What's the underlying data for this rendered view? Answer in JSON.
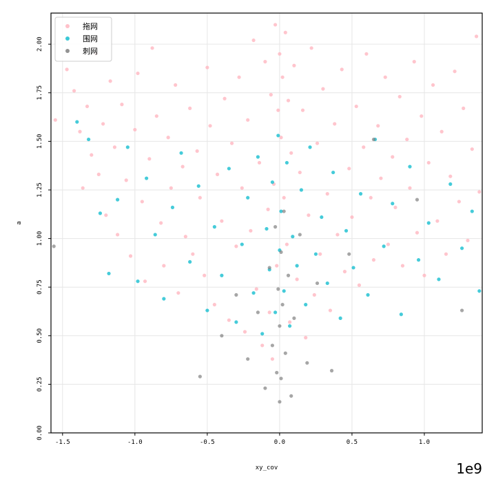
{
  "chart_data": {
    "type": "scatter",
    "title": "",
    "xlabel": "xy_cov",
    "ylabel": "a",
    "x_offset_label": "1e9",
    "xlim": [
      -1.58,
      1.4
    ],
    "ylim": [
      0.0,
      2.16
    ],
    "xticks": [
      -1.5,
      -1.0,
      -0.5,
      0.0,
      0.5,
      1.0
    ],
    "xtick_labels": [
      "-1.5",
      "-1.0",
      "-0.5",
      "0.0",
      "0.5",
      "1.0"
    ],
    "yticks": [
      0.0,
      0.25,
      0.5,
      0.75,
      1.0,
      1.25,
      1.5,
      1.75,
      2.0
    ],
    "ytick_labels": [
      "0.00",
      "0.25",
      "0.50",
      "0.75",
      "1.00",
      "1.25",
      "1.50",
      "1.75",
      "2.00"
    ],
    "grid": true,
    "legend_position": "top-left",
    "series": [
      {
        "name": "拖网",
        "color": "#ffb6c1",
        "points": [
          [
            -1.55,
            1.61
          ],
          [
            -1.47,
            1.87
          ],
          [
            -1.42,
            1.76
          ],
          [
            -1.38,
            1.55
          ],
          [
            -1.36,
            1.26
          ],
          [
            -1.33,
            1.68
          ],
          [
            -1.3,
            1.43
          ],
          [
            -1.27,
            1.95
          ],
          [
            -1.25,
            1.33
          ],
          [
            -1.22,
            1.59
          ],
          [
            -1.2,
            1.12
          ],
          [
            -1.17,
            1.81
          ],
          [
            -1.14,
            1.47
          ],
          [
            -1.12,
            1.02
          ],
          [
            -1.09,
            1.69
          ],
          [
            -1.06,
            1.3
          ],
          [
            -1.03,
            0.91
          ],
          [
            -1.0,
            1.56
          ],
          [
            -0.98,
            1.85
          ],
          [
            -0.95,
            1.19
          ],
          [
            -0.93,
            0.78
          ],
          [
            -0.9,
            1.41
          ],
          [
            -0.88,
            1.98
          ],
          [
            -0.85,
            1.63
          ],
          [
            -0.82,
            1.08
          ],
          [
            -0.8,
            0.86
          ],
          [
            -0.77,
            1.52
          ],
          [
            -0.75,
            1.26
          ],
          [
            -0.72,
            1.79
          ],
          [
            -0.7,
            0.72
          ],
          [
            -0.67,
            1.37
          ],
          [
            -0.65,
            1.01
          ],
          [
            -0.62,
            1.67
          ],
          [
            -0.6,
            0.92
          ],
          [
            -0.57,
            1.45
          ],
          [
            -0.55,
            1.21
          ],
          [
            -0.52,
            0.81
          ],
          [
            -0.5,
            1.88
          ],
          [
            -0.48,
            1.58
          ],
          [
            -0.45,
            0.66
          ],
          [
            -0.43,
            1.33
          ],
          [
            -0.4,
            1.09
          ],
          [
            -0.38,
            1.72
          ],
          [
            -0.35,
            0.58
          ],
          [
            -0.33,
            1.49
          ],
          [
            -0.3,
            0.96
          ],
          [
            -0.28,
            1.83
          ],
          [
            -0.26,
            1.26
          ],
          [
            -0.24,
            0.52
          ],
          [
            -0.22,
            1.61
          ],
          [
            -0.2,
            1.04
          ],
          [
            -0.18,
            2.02
          ],
          [
            -0.16,
            0.74
          ],
          [
            -0.14,
            1.39
          ],
          [
            -0.12,
            0.45
          ],
          [
            -0.1,
            1.91
          ],
          [
            -0.08,
            1.15
          ],
          [
            -0.07,
            0.62
          ],
          [
            -0.06,
            1.74
          ],
          [
            -0.05,
            0.38
          ],
          [
            -0.04,
            1.28
          ],
          [
            -0.03,
            2.1
          ],
          [
            -0.02,
            0.86
          ],
          [
            -0.01,
            1.66
          ],
          [
            0.0,
            1.95
          ],
          [
            0.01,
            1.52
          ],
          [
            0.02,
            1.83
          ],
          [
            0.03,
            1.21
          ],
          [
            0.04,
            2.06
          ],
          [
            0.05,
            0.97
          ],
          [
            0.06,
            1.71
          ],
          [
            0.07,
            0.57
          ],
          [
            0.08,
            1.44
          ],
          [
            0.1,
            1.89
          ],
          [
            0.12,
            0.79
          ],
          [
            0.14,
            1.34
          ],
          [
            0.16,
            1.66
          ],
          [
            0.18,
            0.49
          ],
          [
            0.2,
            1.12
          ],
          [
            0.22,
            1.98
          ],
          [
            0.24,
            0.71
          ],
          [
            0.26,
            1.49
          ],
          [
            0.28,
            0.92
          ],
          [
            0.3,
            1.77
          ],
          [
            0.33,
            1.23
          ],
          [
            0.35,
            0.63
          ],
          [
            0.38,
            1.59
          ],
          [
            0.4,
            1.02
          ],
          [
            0.43,
            1.87
          ],
          [
            0.45,
            0.83
          ],
          [
            0.48,
            1.36
          ],
          [
            0.5,
            1.11
          ],
          [
            0.53,
            1.68
          ],
          [
            0.55,
            0.76
          ],
          [
            0.58,
            1.47
          ],
          [
            0.6,
            1.95
          ],
          [
            0.63,
            1.21
          ],
          [
            0.65,
            0.89
          ],
          [
            0.68,
            1.58
          ],
          [
            0.7,
            1.31
          ],
          [
            0.73,
            1.83
          ],
          [
            0.75,
            0.97
          ],
          [
            0.78,
            1.42
          ],
          [
            0.8,
            1.16
          ],
          [
            0.83,
            1.73
          ],
          [
            0.85,
            0.86
          ],
          [
            0.88,
            1.51
          ],
          [
            0.9,
            1.26
          ],
          [
            0.93,
            1.91
          ],
          [
            0.95,
            1.03
          ],
          [
            0.98,
            1.63
          ],
          [
            1.0,
            0.81
          ],
          [
            1.03,
            1.39
          ],
          [
            1.06,
            1.79
          ],
          [
            1.09,
            1.09
          ],
          [
            1.12,
            1.55
          ],
          [
            1.15,
            0.92
          ],
          [
            1.18,
            1.32
          ],
          [
            1.21,
            1.86
          ],
          [
            1.24,
            1.19
          ],
          [
            1.27,
            1.67
          ],
          [
            1.3,
            0.99
          ],
          [
            1.33,
            1.46
          ],
          [
            1.36,
            2.04
          ],
          [
            1.38,
            1.24
          ]
        ]
      },
      {
        "name": "围网",
        "color": "#17becf",
        "points": [
          [
            -1.4,
            1.6
          ],
          [
            -1.32,
            1.51
          ],
          [
            -1.24,
            1.13
          ],
          [
            -1.18,
            0.82
          ],
          [
            -1.12,
            1.2
          ],
          [
            -1.05,
            1.47
          ],
          [
            -0.98,
            0.78
          ],
          [
            -0.92,
            1.31
          ],
          [
            -0.86,
            1.02
          ],
          [
            -0.8,
            0.69
          ],
          [
            -0.74,
            1.16
          ],
          [
            -0.68,
            1.44
          ],
          [
            -0.62,
            0.88
          ],
          [
            -0.56,
            1.27
          ],
          [
            -0.5,
            0.63
          ],
          [
            -0.45,
            1.06
          ],
          [
            -0.4,
            0.81
          ],
          [
            -0.35,
            1.36
          ],
          [
            -0.3,
            0.57
          ],
          [
            -0.26,
            0.97
          ],
          [
            -0.22,
            1.21
          ],
          [
            -0.18,
            0.72
          ],
          [
            -0.15,
            1.42
          ],
          [
            -0.12,
            0.51
          ],
          [
            -0.09,
            1.05
          ],
          [
            -0.07,
            0.84
          ],
          [
            -0.05,
            1.29
          ],
          [
            -0.03,
            0.62
          ],
          [
            -0.01,
            1.53
          ],
          [
            0.0,
            0.94
          ],
          [
            0.01,
            1.14
          ],
          [
            0.03,
            0.73
          ],
          [
            0.05,
            1.39
          ],
          [
            0.07,
            0.55
          ],
          [
            0.09,
            1.01
          ],
          [
            0.12,
            0.86
          ],
          [
            0.15,
            1.25
          ],
          [
            0.18,
            0.66
          ],
          [
            0.21,
            1.47
          ],
          [
            0.25,
            0.92
          ],
          [
            0.29,
            1.11
          ],
          [
            0.33,
            0.77
          ],
          [
            0.37,
            1.34
          ],
          [
            0.42,
            0.59
          ],
          [
            0.46,
            1.04
          ],
          [
            0.51,
            0.85
          ],
          [
            0.56,
            1.23
          ],
          [
            0.61,
            0.71
          ],
          [
            0.66,
            1.51
          ],
          [
            0.72,
            0.96
          ],
          [
            0.78,
            1.18
          ],
          [
            0.84,
            0.61
          ],
          [
            0.9,
            1.37
          ],
          [
            0.96,
            0.89
          ],
          [
            1.03,
            1.08
          ],
          [
            1.1,
            0.79
          ],
          [
            1.18,
            1.28
          ],
          [
            1.26,
            0.95
          ],
          [
            1.33,
            1.14
          ],
          [
            1.38,
            0.73
          ]
        ]
      },
      {
        "name": "刺网",
        "color": "#808080",
        "points": [
          [
            -1.56,
            0.96
          ],
          [
            -0.55,
            0.29
          ],
          [
            -0.4,
            0.5
          ],
          [
            -0.3,
            0.71
          ],
          [
            -0.22,
            0.38
          ],
          [
            -0.15,
            0.62
          ],
          [
            -0.1,
            0.23
          ],
          [
            -0.07,
            0.85
          ],
          [
            -0.05,
            0.45
          ],
          [
            -0.03,
            1.06
          ],
          [
            -0.02,
            0.31
          ],
          [
            -0.01,
            0.74
          ],
          [
            0.0,
            0.16
          ],
          [
            0.0,
            0.55
          ],
          [
            0.01,
            0.93
          ],
          [
            0.01,
            0.28
          ],
          [
            0.02,
            0.66
          ],
          [
            0.03,
            1.14
          ],
          [
            0.04,
            0.41
          ],
          [
            0.06,
            0.81
          ],
          [
            0.08,
            0.19
          ],
          [
            0.1,
            0.59
          ],
          [
            0.14,
            1.02
          ],
          [
            0.19,
            0.36
          ],
          [
            0.26,
            0.77
          ],
          [
            0.36,
            0.32
          ],
          [
            0.48,
            0.92
          ],
          [
            0.65,
            1.51
          ],
          [
            0.95,
            1.2
          ],
          [
            1.26,
            0.63
          ]
        ]
      }
    ]
  }
}
